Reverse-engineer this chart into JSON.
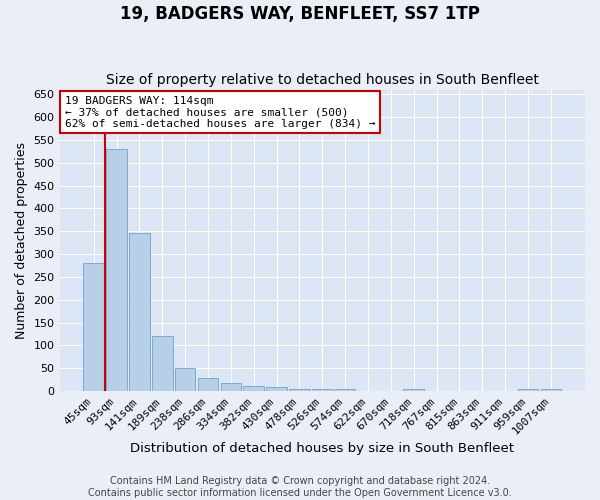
{
  "title": "19, BADGERS WAY, BENFLEET, SS7 1TP",
  "subtitle": "Size of property relative to detached houses in South Benfleet",
  "xlabel": "Distribution of detached houses by size in South Benfleet",
  "ylabel": "Number of detached properties",
  "footer_line1": "Contains HM Land Registry data © Crown copyright and database right 2024.",
  "footer_line2": "Contains public sector information licensed under the Open Government Licence v3.0.",
  "categories": [
    "45sqm",
    "93sqm",
    "141sqm",
    "189sqm",
    "238sqm",
    "286sqm",
    "334sqm",
    "382sqm",
    "430sqm",
    "478sqm",
    "526sqm",
    "574sqm",
    "622sqm",
    "670sqm",
    "718sqm",
    "767sqm",
    "815sqm",
    "863sqm",
    "911sqm",
    "959sqm",
    "1007sqm"
  ],
  "values": [
    280,
    530,
    345,
    120,
    50,
    28,
    18,
    12,
    10,
    5,
    5,
    5,
    0,
    0,
    5,
    0,
    0,
    0,
    0,
    5,
    5
  ],
  "bar_color": "#b8cfe8",
  "bar_edge_color": "#7aabd4",
  "background_color": "#eaeff7",
  "plot_bg_color": "#dce6f4",
  "grid_color": "#ffffff",
  "vline_color": "#cc0000",
  "vline_pos": 0.5,
  "annotation_text": "19 BADGERS WAY: 114sqm\n← 37% of detached houses are smaller (500)\n62% of semi-detached houses are larger (834) →",
  "annotation_box_color": "#ffffff",
  "annotation_border_color": "#cc0000",
  "ylim": [
    0,
    660
  ],
  "yticks": [
    0,
    50,
    100,
    150,
    200,
    250,
    300,
    350,
    400,
    450,
    500,
    550,
    600,
    650
  ],
  "title_fontsize": 12,
  "subtitle_fontsize": 10,
  "xlabel_fontsize": 9.5,
  "ylabel_fontsize": 9,
  "tick_fontsize": 8,
  "annotation_fontsize": 8,
  "footer_fontsize": 7
}
